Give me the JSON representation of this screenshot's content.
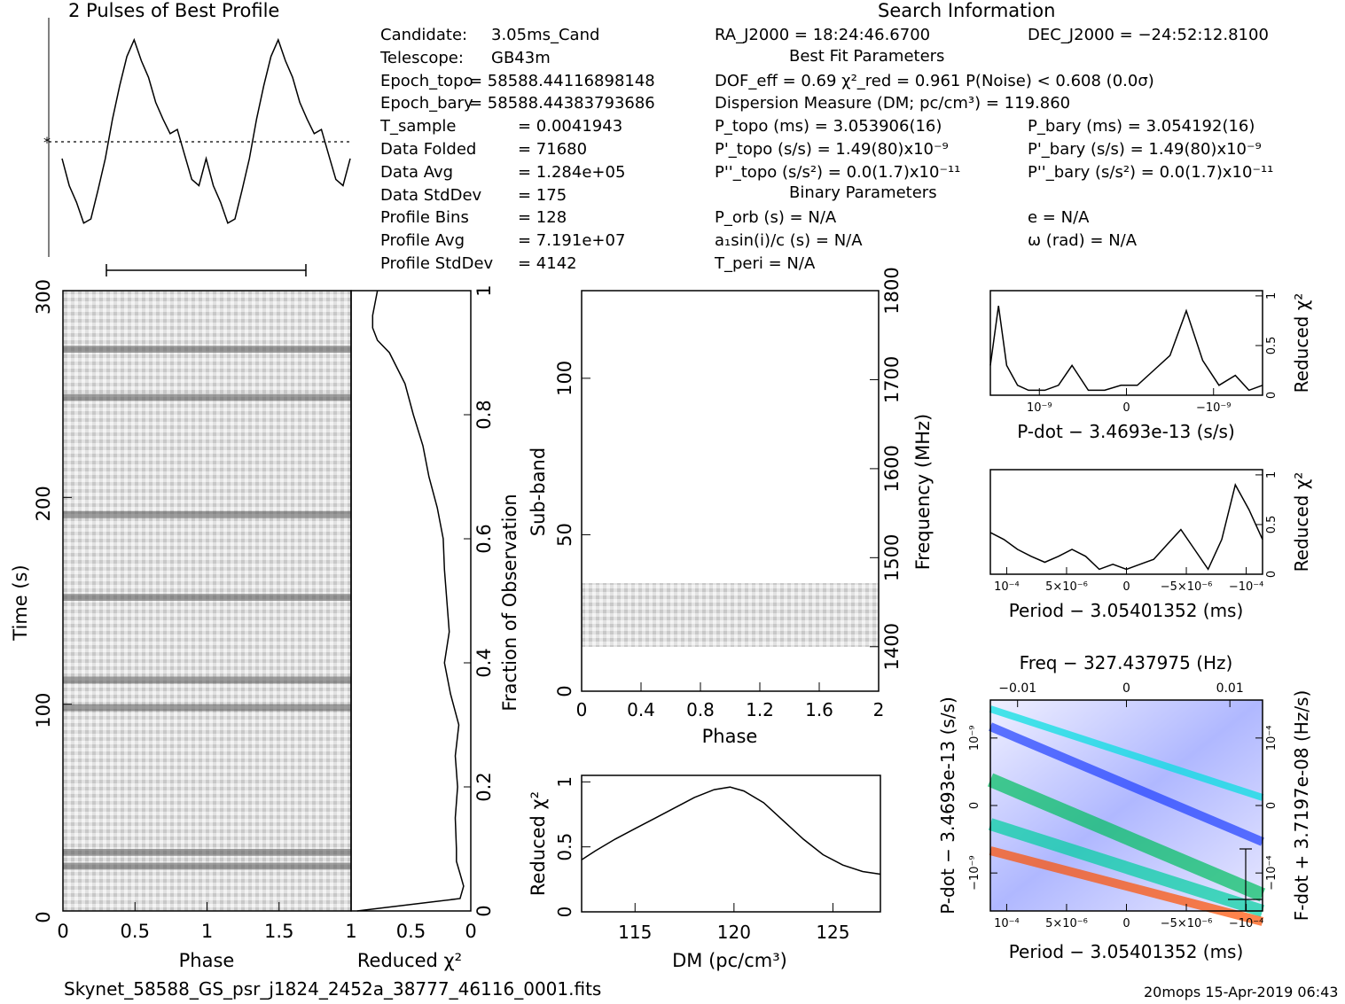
{
  "titles": {
    "profile": "2 Pulses of Best Profile",
    "search": "Search Information",
    "best_fit": "Best Fit Parameters",
    "binary": "Binary Parameters"
  },
  "info_left": [
    {
      "label": "Candidate:",
      "value": "3.05ms_Cand"
    },
    {
      "label": "Telescope:",
      "value": "GB43m"
    },
    {
      "label": "Epoch_topo",
      "value": "= 58588.44116898148"
    },
    {
      "label": "Epoch_bary",
      "value": "= 58588.44383793686"
    },
    {
      "label": "T_sample",
      "value": "=  0.0041943"
    },
    {
      "label": "Data Folded",
      "value": "=  71680"
    },
    {
      "label": "Data Avg",
      "value": "=  1.284e+05"
    },
    {
      "label": "Data StdDev",
      "value": "=  175"
    },
    {
      "label": "Profile Bins",
      "value": "=  128"
    },
    {
      "label": "Profile Avg",
      "value": "=  7.191e+07"
    },
    {
      "label": "Profile StdDev",
      "value": "=  4142"
    }
  ],
  "info_mid": [
    "RA_J2000 = 18:24:46.6700",
    "DOF_eff = 0.69  χ²_red = 0.961   P(Noise) < 0.608   (0.0σ)",
    "Dispersion Measure (DM; pc/cm³) = 119.860",
    "P_topo (ms) =  3.053906(16)",
    "P'_topo (s/s) =  1.49(80)x10⁻⁹",
    "P''_topo (s/s²) = 0.0(1.7)x10⁻¹¹",
    "P_orb (s) = N/A",
    "a₁sin(i)/c (s) = N/A",
    "T_peri = N/A"
  ],
  "info_right": [
    "DEC_J2000 = −24:52:12.8100",
    "P_bary (ms) =  3.054192(16)",
    "P'_bary (s/s) =  1.49(80)x10⁻⁹",
    "P''_bary (s/s²) = 0.0(1.7)x10⁻¹¹",
    "e = N/A",
    "ω (rad) = N/A"
  ],
  "footer": {
    "filename": "Skynet_58588_GS_psr_j1824_2452a_38777_46116_0001.fits",
    "stamp": "20mops 15-Apr-2019 06:43"
  },
  "chart_data": [
    {
      "id": "profile",
      "type": "line",
      "title": "2 Pulses of Best Profile",
      "x": [
        0,
        0.05,
        0.1,
        0.15,
        0.2,
        0.25,
        0.3,
        0.35,
        0.4,
        0.45,
        0.5,
        0.55,
        0.6,
        0.65,
        0.7,
        0.75,
        0.8,
        0.85,
        0.9,
        0.95,
        1.0,
        1.05,
        1.1,
        1.15,
        1.2,
        1.25,
        1.3,
        1.35,
        1.4,
        1.45,
        1.5,
        1.55,
        1.6,
        1.65,
        1.7,
        1.75,
        1.8,
        1.85,
        1.9,
        1.95,
        2.0
      ],
      "y": [
        0.43,
        0.3,
        0.22,
        0.12,
        0.14,
        0.28,
        0.43,
        0.62,
        0.78,
        0.92,
        1.0,
        0.9,
        0.82,
        0.7,
        0.62,
        0.55,
        0.57,
        0.45,
        0.33,
        0.3,
        0.43,
        0.3,
        0.22,
        0.12,
        0.14,
        0.28,
        0.43,
        0.62,
        0.78,
        0.92,
        1.0,
        0.9,
        0.82,
        0.7,
        0.62,
        0.55,
        0.57,
        0.45,
        0.33,
        0.3,
        0.43
      ],
      "avg_line": 0.55
    },
    {
      "id": "time-phase",
      "type": "heatmap",
      "xlabel": "Phase",
      "ylabel": "Time (s)",
      "x_ticks": [
        "0",
        "0.5",
        "1",
        "1.5"
      ],
      "y_ticks": [
        "0",
        "100",
        "200",
        "300"
      ],
      "xlim": [
        0,
        2
      ],
      "ylim": [
        0,
        300
      ],
      "dark_rows": [
        6,
        8,
        29,
        33,
        45,
        57,
        74,
        81
      ]
    },
    {
      "id": "chi-vs-time",
      "type": "line",
      "xlabel": "Reduced χ²",
      "ylabel": "Fraction of Observation",
      "x_ticks": [
        "1",
        "0.5",
        "0"
      ],
      "y_ticks": [
        "0",
        "0.2",
        "0.4",
        "0.6",
        "0.8",
        "1"
      ],
      "frac": [
        0,
        0.02,
        0.04,
        0.06,
        0.08,
        0.1,
        0.15,
        0.2,
        0.25,
        0.3,
        0.35,
        0.4,
        0.45,
        0.5,
        0.55,
        0.6,
        0.65,
        0.7,
        0.75,
        0.8,
        0.85,
        0.9,
        0.92,
        0.94,
        0.96,
        0.98,
        1.0
      ],
      "chi": [
        0.95,
        0.09,
        0.06,
        0.09,
        0.12,
        0.12,
        0.13,
        0.11,
        0.13,
        0.1,
        0.17,
        0.22,
        0.18,
        0.2,
        0.22,
        0.23,
        0.28,
        0.35,
        0.4,
        0.48,
        0.55,
        0.68,
        0.78,
        0.82,
        0.82,
        0.8,
        0.78
      ]
    },
    {
      "id": "subband",
      "type": "heatmap",
      "xlabel": "Phase",
      "ylabel": "Sub-band",
      "ylabel_right": "Frequency (MHz)",
      "x_ticks": [
        "0",
        "0.4",
        "0.8",
        "1.2",
        "1.6",
        "2"
      ],
      "y_ticks": [
        "0",
        "50",
        "100"
      ],
      "y_ticks_right": [
        "1400",
        "1500",
        "1600",
        "1700",
        "1800"
      ],
      "xlim": [
        0,
        2
      ],
      "ylim": [
        0,
        128
      ],
      "filled_subbands": [
        15,
        35
      ]
    },
    {
      "id": "dm-curve",
      "type": "line",
      "xlabel": "DM (pc/cm³)",
      "ylabel": "Reduced χ²",
      "x_ticks": [
        "115",
        "120",
        "125"
      ],
      "y_ticks": [
        "0",
        "0.5",
        "1"
      ],
      "xlim": [
        112.3,
        127.4
      ],
      "ylim": [
        0,
        1.05
      ],
      "x": [
        112.3,
        113,
        114,
        115,
        116,
        117,
        118,
        119,
        119.8,
        120.5,
        121.5,
        122.5,
        123.5,
        124.5,
        125.5,
        126.5,
        127.4
      ],
      "y": [
        0.4,
        0.47,
        0.56,
        0.64,
        0.72,
        0.8,
        0.88,
        0.94,
        0.96,
        0.93,
        0.84,
        0.7,
        0.56,
        0.44,
        0.36,
        0.31,
        0.29
      ]
    },
    {
      "id": "pdot-curve",
      "type": "line",
      "xlabel": "P-dot − 3.4693e-13 (s/s)",
      "ylabel": "Reduced χ²",
      "x_ticks": [
        "10⁻⁹",
        "0",
        "−10⁻⁹"
      ],
      "y_ticks": [
        "0",
        "0.5",
        "1"
      ],
      "x": [
        0,
        0.03,
        0.06,
        0.1,
        0.14,
        0.2,
        0.25,
        0.3,
        0.36,
        0.42,
        0.48,
        0.54,
        0.6,
        0.66,
        0.72,
        0.78,
        0.84,
        0.9,
        0.95,
        1.0
      ],
      "y": [
        0.3,
        0.9,
        0.3,
        0.1,
        0.05,
        0.05,
        0.1,
        0.3,
        0.05,
        0.05,
        0.1,
        0.1,
        0.25,
        0.4,
        0.85,
        0.35,
        0.1,
        0.2,
        0.05,
        0.1
      ]
    },
    {
      "id": "period-curve",
      "type": "line",
      "xlabel": "Period − 3.05401352 (ms)",
      "ylabel": "Reduced χ²",
      "x_ticks": [
        "10⁻⁴",
        "5×10⁻⁶",
        "0",
        "−5×10⁻⁶",
        "−10⁻⁴"
      ],
      "y_ticks": [
        "0",
        "0.5",
        "1"
      ],
      "x": [
        0,
        0.05,
        0.1,
        0.15,
        0.2,
        0.25,
        0.3,
        0.35,
        0.4,
        0.45,
        0.5,
        0.55,
        0.6,
        0.65,
        0.7,
        0.75,
        0.8,
        0.85,
        0.9,
        0.95,
        1.0
      ],
      "y": [
        0.42,
        0.35,
        0.25,
        0.18,
        0.12,
        0.18,
        0.25,
        0.18,
        0.05,
        0.1,
        0.05,
        0.1,
        0.15,
        0.3,
        0.45,
        0.25,
        0.05,
        0.35,
        0.9,
        0.65,
        0.35
      ]
    },
    {
      "id": "p-pdot",
      "type": "heatmap",
      "xlabel": "Period − 3.05401352 (ms)",
      "x2label": "Freq − 327.437975 (Hz)",
      "ylabel": "P-dot − 3.4693e-13 (s/s)",
      "y2label": "F-dot + 3.7197e-08 (Hz/s)",
      "x_ticks": [
        "10⁻⁴",
        "5×10⁻⁶",
        "0",
        "−5×10⁻⁶",
        "−10⁻⁴"
      ],
      "x2_ticks": [
        "−0.01",
        "0",
        "0.01"
      ],
      "y_ticks": [
        "10⁻⁹",
        "0",
        "−10⁻⁹"
      ],
      "y2_ticks": [
        "−10⁻⁴",
        "0",
        "10⁻⁴"
      ]
    }
  ]
}
